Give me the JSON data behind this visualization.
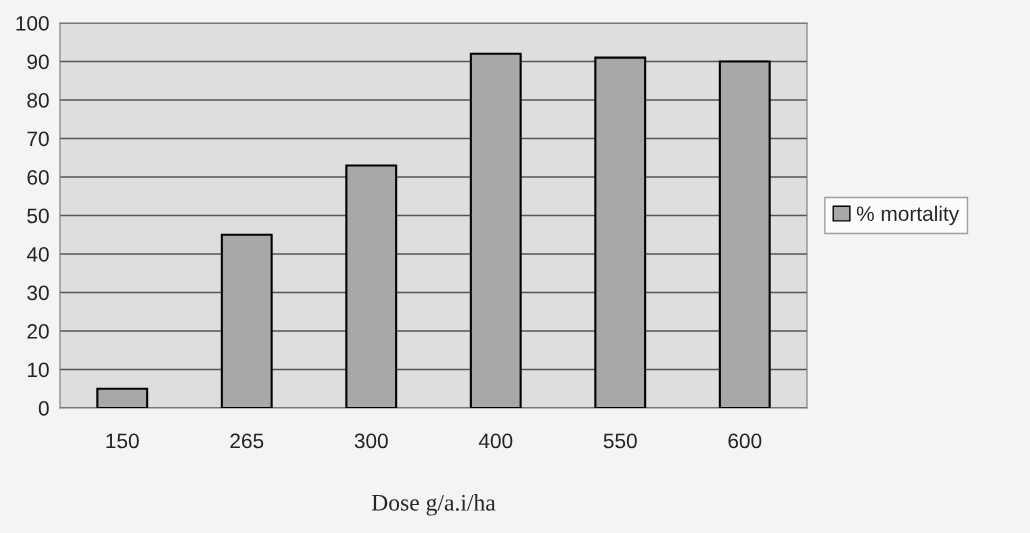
{
  "chart_data": {
    "type": "bar",
    "xlabel": "Dose g/a.i/ha",
    "categories": [
      "150",
      "265",
      "300",
      "400",
      "550",
      "600"
    ],
    "series": [
      {
        "name": "% mortality",
        "color": "#a8a8a8",
        "values": [
          5,
          45,
          63,
          92,
          91,
          90
        ]
      }
    ],
    "ylim": [
      0,
      100
    ],
    "yticks": [
      0,
      10,
      20,
      30,
      40,
      50,
      60,
      70,
      80,
      90,
      100
    ],
    "grid": "y",
    "legend": "right"
  }
}
